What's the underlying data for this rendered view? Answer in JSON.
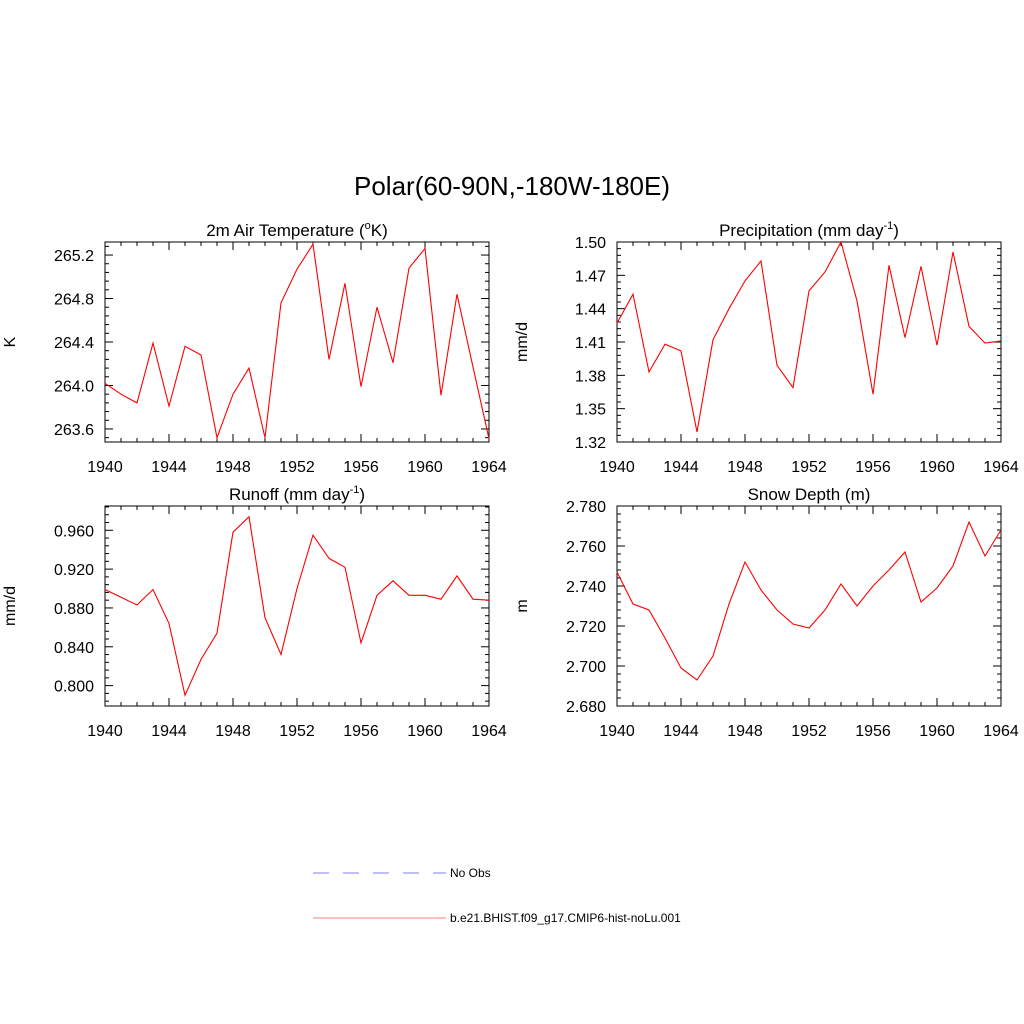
{
  "title": "Polar(60-90N,-180W-180E)",
  "legend": [
    {
      "label": "No Obs",
      "color": "#9999ff",
      "style": "dashed"
    },
    {
      "label": "b.e21.BHIST.f09_g17.CMIP6-hist-noLu.001",
      "color": "#ff0000",
      "style": "solid"
    }
  ],
  "chart_data": [
    {
      "type": "line",
      "title": "2m Air Temperature",
      "title_unit": {
        "pre": " (",
        "sup": "o",
        "post": "K)"
      },
      "xlabel": "",
      "ylabel": "K",
      "xlim": [
        1940,
        1964
      ],
      "ylim": [
        263.48,
        265.32
      ],
      "xticks": [
        1940,
        1944,
        1948,
        1952,
        1956,
        1960,
        1964
      ],
      "xtick_labels": [
        "1940",
        "1944",
        "1948",
        "1952",
        "1956",
        "1960",
        "1964"
      ],
      "yticks": [
        263.6,
        264.0,
        264.4,
        264.8,
        265.2
      ],
      "ytick_labels": [
        "263.6",
        "264.0",
        "264.4",
        "264.8",
        "265.2"
      ],
      "series": [
        {
          "color": "#ff0000",
          "x": [
            1940,
            1941,
            1942,
            1943,
            1944,
            1945,
            1946,
            1947,
            1948,
            1949,
            1950,
            1951,
            1952,
            1953,
            1954,
            1955,
            1956,
            1957,
            1958,
            1959,
            1960,
            1961,
            1962,
            1963,
            1964
          ],
          "y": [
            264.02,
            263.92,
            263.84,
            264.39,
            263.81,
            264.36,
            264.28,
            263.52,
            263.92,
            264.16,
            263.52,
            264.76,
            265.07,
            265.3,
            264.24,
            264.94,
            263.99,
            264.72,
            264.21,
            265.08,
            265.26,
            263.91,
            264.84,
            264.17,
            263.51
          ]
        }
      ]
    },
    {
      "type": "line",
      "title": "Precipitation",
      "title_unit": {
        "pre": " (mm day",
        "sup": "-1",
        "post": ")"
      },
      "xlabel": "",
      "ylabel": "mm/d",
      "xlim": [
        1940,
        1964
      ],
      "ylim": [
        1.32,
        1.5
      ],
      "xticks": [
        1940,
        1944,
        1948,
        1952,
        1956,
        1960,
        1964
      ],
      "xtick_labels": [
        "1940",
        "1944",
        "1948",
        "1952",
        "1956",
        "1960",
        "1964"
      ],
      "yticks": [
        1.32,
        1.35,
        1.38,
        1.41,
        1.44,
        1.47,
        1.5
      ],
      "ytick_labels": [
        "1.32",
        "1.35",
        "1.38",
        "1.41",
        "1.44",
        "1.47",
        "1.50"
      ],
      "series": [
        {
          "color": "#ff0000",
          "x": [
            1940,
            1941,
            1942,
            1943,
            1944,
            1945,
            1946,
            1947,
            1948,
            1949,
            1950,
            1951,
            1952,
            1953,
            1954,
            1955,
            1956,
            1957,
            1958,
            1959,
            1960,
            1961,
            1962,
            1963,
            1964
          ],
          "y": [
            1.427,
            1.453,
            1.383,
            1.408,
            1.402,
            1.329,
            1.412,
            1.44,
            1.465,
            1.483,
            1.389,
            1.369,
            1.456,
            1.473,
            1.5,
            1.447,
            1.363,
            1.479,
            1.414,
            1.478,
            1.407,
            1.491,
            1.424,
            1.409,
            1.411
          ]
        }
      ]
    },
    {
      "type": "line",
      "title": "Runoff",
      "title_unit": {
        "pre": " (mm day",
        "sup": "-1",
        "post": ")"
      },
      "xlabel": "",
      "ylabel": "mm/d",
      "xlim": [
        1940,
        1964
      ],
      "ylim": [
        0.779,
        0.985
      ],
      "xticks": [
        1940,
        1944,
        1948,
        1952,
        1956,
        1960,
        1964
      ],
      "xtick_labels": [
        "1940",
        "1944",
        "1948",
        "1952",
        "1956",
        "1960",
        "1964"
      ],
      "yticks": [
        0.8,
        0.84,
        0.88,
        0.92,
        0.96
      ],
      "ytick_labels": [
        "0.800",
        "0.840",
        "0.880",
        "0.920",
        "0.960"
      ],
      "series": [
        {
          "color": "#ff0000",
          "x": [
            1940,
            1941,
            1942,
            1943,
            1944,
            1945,
            1946,
            1947,
            1948,
            1949,
            1950,
            1951,
            1952,
            1953,
            1954,
            1955,
            1956,
            1957,
            1958,
            1959,
            1960,
            1961,
            1962,
            1963,
            1964
          ],
          "y": [
            0.899,
            0.891,
            0.883,
            0.899,
            0.864,
            0.79,
            0.827,
            0.854,
            0.958,
            0.974,
            0.87,
            0.832,
            0.9,
            0.955,
            0.931,
            0.922,
            0.844,
            0.893,
            0.908,
            0.893,
            0.893,
            0.889,
            0.913,
            0.889,
            0.888
          ]
        }
      ]
    },
    {
      "type": "line",
      "title": "Snow Depth (m)",
      "title_unit": null,
      "xlabel": "",
      "ylabel": "m",
      "xlim": [
        1940,
        1964
      ],
      "ylim": [
        2.68,
        2.78
      ],
      "xticks": [
        1940,
        1944,
        1948,
        1952,
        1956,
        1960,
        1964
      ],
      "xtick_labels": [
        "1940",
        "1944",
        "1948",
        "1952",
        "1956",
        "1960",
        "1964"
      ],
      "yticks": [
        2.68,
        2.7,
        2.72,
        2.74,
        2.76,
        2.78
      ],
      "ytick_labels": [
        "2.680",
        "2.700",
        "2.720",
        "2.740",
        "2.760",
        "2.780"
      ],
      "series": [
        {
          "color": "#ff0000",
          "x": [
            1940,
            1941,
            1942,
            1943,
            1944,
            1945,
            1946,
            1947,
            1948,
            1949,
            1950,
            1951,
            1952,
            1953,
            1954,
            1955,
            1956,
            1957,
            1958,
            1959,
            1960,
            1961,
            1962,
            1963,
            1964
          ],
          "y": [
            2.747,
            2.731,
            2.728,
            2.714,
            2.699,
            2.693,
            2.705,
            2.731,
            2.752,
            2.738,
            2.728,
            2.721,
            2.719,
            2.728,
            2.741,
            2.73,
            2.74,
            2.748,
            2.757,
            2.732,
            2.739,
            2.75,
            2.772,
            2.755,
            2.768
          ]
        }
      ]
    }
  ]
}
